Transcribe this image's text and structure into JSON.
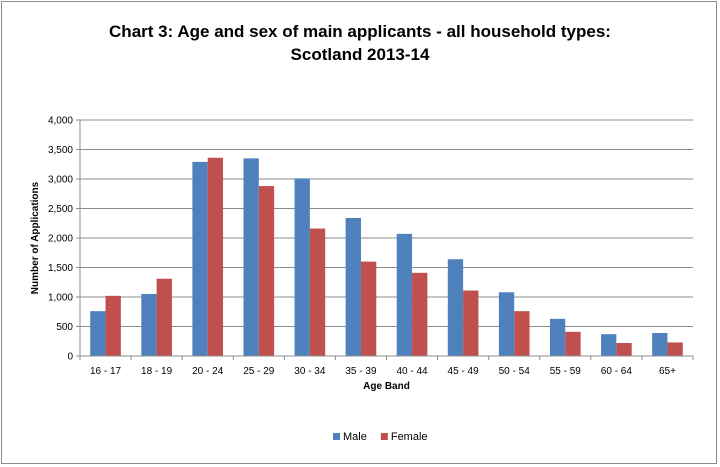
{
  "chart_data": {
    "type": "bar",
    "title": "Chart 3: Age and sex of main applicants - all household types:",
    "subtitle": "Scotland 2013-14",
    "xlabel": "Age Band",
    "ylabel": "Number of Applications",
    "ylim": [
      0,
      4000
    ],
    "yticks": [
      0,
      500,
      1000,
      1500,
      2000,
      2500,
      3000,
      3500,
      4000
    ],
    "ytick_labels": [
      "0",
      "500",
      "1,000",
      "1,500",
      "2,000",
      "2,500",
      "3,000",
      "3,500",
      "4,000"
    ],
    "grid": true,
    "legend_position": "bottom",
    "categories": [
      "16 - 17",
      "18 - 19",
      "20 - 24",
      "25 - 29",
      "30 - 34",
      "35 - 39",
      "40 - 44",
      "45 - 49",
      "50 - 54",
      "55 - 59",
      "60 - 64",
      "65+"
    ],
    "series": [
      {
        "name": "Male",
        "color": "#4f81bd",
        "values": [
          760,
          1050,
          3290,
          3350,
          3010,
          2340,
          2070,
          1640,
          1080,
          630,
          370,
          390
        ]
      },
      {
        "name": "Female",
        "color": "#c0504d",
        "values": [
          1020,
          1310,
          3360,
          2880,
          2160,
          1600,
          1410,
          1110,
          760,
          410,
          220,
          230
        ]
      }
    ]
  }
}
